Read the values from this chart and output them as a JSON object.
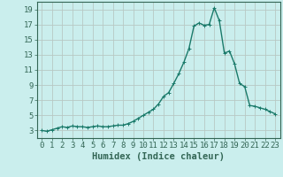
{
  "x": [
    0,
    0.5,
    1,
    1.5,
    2,
    2.5,
    3,
    3.5,
    4,
    4.5,
    5,
    5.5,
    6,
    6.5,
    7,
    7.5,
    8,
    8.5,
    9,
    9.5,
    10,
    10.5,
    11,
    11.5,
    12,
    12.5,
    13,
    13.5,
    14,
    14.5,
    15,
    15.5,
    16,
    16.5,
    17,
    17.5,
    18,
    18.5,
    19,
    19.5,
    20,
    20.5,
    21,
    21.5,
    22,
    22.5,
    23
  ],
  "y": [
    3.0,
    2.9,
    3.1,
    3.3,
    3.5,
    3.4,
    3.6,
    3.5,
    3.5,
    3.4,
    3.5,
    3.6,
    3.5,
    3.5,
    3.6,
    3.7,
    3.7,
    3.9,
    4.2,
    4.6,
    5.0,
    5.4,
    5.8,
    6.5,
    7.5,
    8.0,
    9.2,
    10.5,
    12.0,
    13.8,
    16.8,
    17.2,
    16.9,
    17.0,
    19.2,
    17.5,
    13.2,
    13.5,
    11.8,
    9.2,
    8.8,
    6.3,
    6.2,
    6.0,
    5.8,
    5.5,
    5.2
  ],
  "line_color": "#1a7a6a",
  "marker_color": "#1a7a6a",
  "bg_color": "#caeeed",
  "grid_color": "#b8c8c4",
  "axis_color": "#336655",
  "xlabel": "Humidex (Indice chaleur)",
  "xlim": [
    -0.5,
    23.5
  ],
  "ylim": [
    2.0,
    20.0
  ],
  "yticks": [
    3,
    5,
    7,
    9,
    11,
    13,
    15,
    17,
    19
  ],
  "xticks": [
    0,
    1,
    2,
    3,
    4,
    5,
    6,
    7,
    8,
    9,
    10,
    11,
    12,
    13,
    14,
    15,
    16,
    17,
    18,
    19,
    20,
    21,
    22,
    23
  ],
  "xlabel_fontsize": 7.5,
  "tick_fontsize": 6.5,
  "line_width": 1.0,
  "marker_size": 2.5
}
